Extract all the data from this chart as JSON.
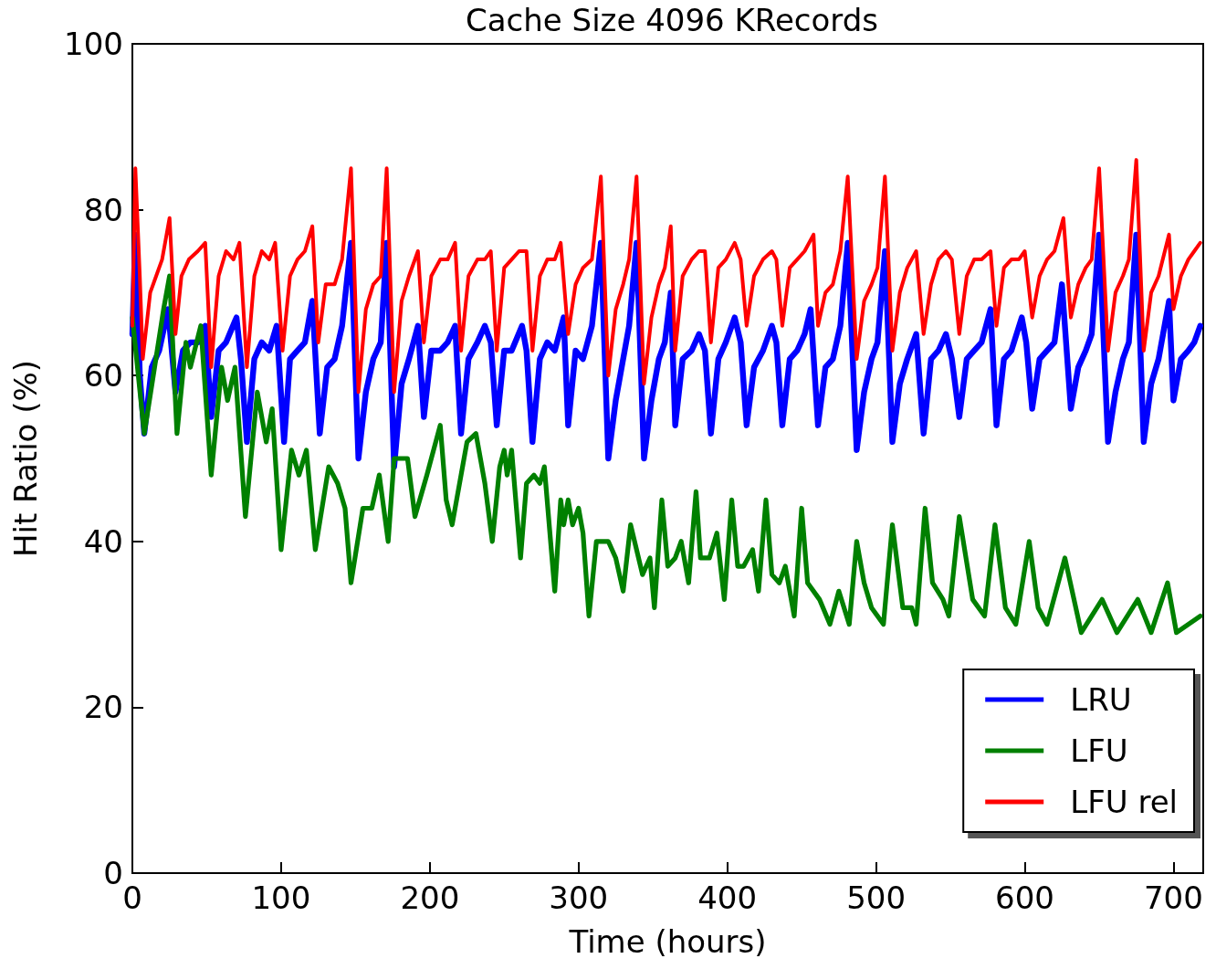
{
  "chart_data": {
    "type": "line",
    "title": "Cache Size 4096 KRecords",
    "xlabel": "Time (hours)",
    "ylabel": "Hit Ratio (%)",
    "xlim": [
      0,
      720
    ],
    "xticks": [
      0,
      100,
      200,
      300,
      400,
      500,
      600,
      700
    ],
    "ylim": [
      0,
      100
    ],
    "yticks": [
      0,
      20,
      40,
      60,
      80,
      100
    ],
    "grid": false,
    "legend": "bottom right",
    "marker": "none",
    "line_style": "solid",
    "series": [
      {
        "name": "LRU",
        "color": "#0000ff",
        "x": [
          0,
          2,
          5,
          8,
          13,
          18,
          24,
          29,
          34,
          39,
          44,
          49,
          53,
          58,
          63,
          70,
          73,
          77,
          82,
          87,
          92,
          97,
          102,
          106,
          111,
          116,
          121,
          126,
          131,
          136,
          141,
          147,
          152,
          157,
          162,
          167,
          171,
          176,
          181,
          186,
          192,
          196,
          201,
          207,
          212,
          217,
          221,
          226,
          232,
          237,
          241,
          245,
          250,
          255,
          262,
          265,
          269,
          274,
          279,
          284,
          290,
          293,
          298,
          303,
          309,
          315,
          320,
          325,
          330,
          334,
          339,
          344,
          349,
          354,
          358,
          362,
          365,
          370,
          376,
          381,
          385,
          389,
          394,
          399,
          405,
          409,
          413,
          418,
          424,
          430,
          433,
          437,
          442,
          447,
          452,
          456,
          461,
          466,
          471,
          476,
          481,
          487,
          492,
          497,
          501,
          506,
          511,
          516,
          521,
          527,
          532,
          537,
          542,
          547,
          551,
          556,
          561,
          566,
          571,
          577,
          581,
          586,
          591,
          598,
          601,
          605,
          610,
          615,
          620,
          625,
          631,
          636,
          641,
          645,
          650,
          656,
          661,
          666,
          670,
          675,
          680,
          685,
          690,
          697,
          700,
          705,
          710,
          714,
          718
        ],
        "values": [
          65,
          77,
          60,
          53,
          61,
          63,
          68,
          58,
          63,
          64,
          64,
          66,
          55,
          63,
          64,
          67,
          62,
          52,
          62,
          64,
          63,
          66,
          52,
          62,
          63,
          64,
          69,
          53,
          61,
          62,
          66,
          76,
          50,
          58,
          62,
          64,
          76,
          49,
          59,
          62,
          66,
          55,
          63,
          63,
          64,
          66,
          53,
          62,
          64,
          66,
          64,
          54,
          63,
          63,
          66,
          63,
          52,
          62,
          64,
          63,
          67,
          54,
          63,
          62,
          66,
          76,
          50,
          57,
          62,
          66,
          76,
          50,
          57,
          62,
          64,
          70,
          54,
          62,
          63,
          65,
          63,
          53,
          62,
          64,
          67,
          64,
          54,
          61,
          63,
          66,
          64,
          54,
          62,
          63,
          65,
          68,
          54,
          61,
          62,
          66,
          76,
          51,
          58,
          62,
          64,
          75,
          52,
          59,
          62,
          65,
          53,
          62,
          63,
          65,
          62,
          55,
          62,
          63,
          64,
          68,
          54,
          62,
          63,
          67,
          64,
          56,
          62,
          63,
          64,
          71,
          56,
          61,
          63,
          65,
          77,
          52,
          58,
          62,
          64,
          77,
          52,
          59,
          62,
          69,
          57,
          62,
          63,
          64,
          66
        ]
      },
      {
        "name": "LFU",
        "color": "#008000",
        "x": [
          0,
          8,
          21,
          25,
          30,
          36,
          39,
          46,
          53,
          60,
          64,
          69,
          76,
          84,
          90,
          94,
          100,
          107,
          112,
          117,
          123,
          132,
          138,
          143,
          147,
          155,
          161,
          166,
          169,
          172,
          176,
          185,
          190,
          198,
          207,
          211,
          215,
          225,
          231,
          237,
          242,
          247,
          250,
          252,
          255,
          261,
          265,
          270,
          274,
          277,
          284,
          288,
          290,
          293,
          296,
          300,
          303,
          307,
          312,
          320,
          325,
          330,
          335,
          343,
          348,
          351,
          356,
          360,
          365,
          369,
          374,
          379,
          382,
          388,
          393,
          398,
          403,
          407,
          411,
          417,
          421,
          426,
          430,
          435,
          439,
          445,
          450,
          454,
          462,
          469,
          475,
          482,
          487,
          492,
          497,
          505,
          511,
          518,
          524,
          527,
          533,
          538,
          545,
          549,
          556,
          565,
          573,
          580,
          587,
          594,
          603,
          609,
          615,
          627,
          638,
          652,
          662,
          676,
          685,
          696,
          702,
          718
        ],
        "values": [
          67,
          53,
          68,
          72,
          53,
          64,
          61,
          66,
          48,
          61,
          57,
          61,
          43,
          58,
          52,
          56,
          39,
          51,
          48,
          51,
          39,
          49,
          47,
          44,
          35,
          44,
          44,
          48,
          44,
          40,
          50,
          50,
          43,
          48,
          54,
          45,
          42,
          52,
          53,
          47,
          40,
          49,
          51,
          48,
          51,
          38,
          47,
          48,
          47,
          49,
          34,
          45,
          42,
          45,
          42,
          44,
          41,
          31,
          40,
          40,
          38,
          34,
          42,
          36,
          38,
          32,
          45,
          37,
          38,
          40,
          35,
          46,
          38,
          38,
          41,
          33,
          45,
          37,
          37,
          39,
          34,
          45,
          36,
          35,
          37,
          31,
          44,
          35,
          33,
          30,
          34,
          30,
          40,
          35,
          32,
          30,
          42,
          32,
          32,
          30,
          44,
          35,
          33,
          31,
          43,
          33,
          31,
          42,
          32,
          30,
          40,
          32,
          30,
          38,
          29,
          33,
          29,
          33,
          29,
          35,
          29,
          31
        ]
      },
      {
        "name": "LFU rel",
        "color": "#ff0000",
        "x": [
          0,
          2,
          5,
          7,
          12,
          16,
          20,
          25,
          29,
          33,
          38,
          44,
          49,
          53,
          58,
          63,
          68,
          72,
          77,
          82,
          87,
          92,
          96,
          101,
          106,
          111,
          116,
          121,
          125,
          130,
          136,
          141,
          147,
          152,
          157,
          162,
          167,
          171,
          176,
          181,
          186,
          192,
          196,
          201,
          207,
          212,
          217,
          221,
          226,
          232,
          237,
          241,
          245,
          250,
          255,
          260,
          265,
          269,
          274,
          279,
          284,
          288,
          293,
          298,
          303,
          309,
          315,
          320,
          325,
          330,
          334,
          339,
          344,
          349,
          354,
          358,
          362,
          365,
          370,
          376,
          381,
          385,
          389,
          394,
          399,
          405,
          409,
          413,
          418,
          424,
          430,
          433,
          437,
          442,
          447,
          452,
          458,
          461,
          466,
          471,
          476,
          481,
          487,
          492,
          497,
          501,
          506,
          511,
          516,
          521,
          527,
          532,
          537,
          542,
          547,
          551,
          556,
          561,
          566,
          571,
          577,
          581,
          586,
          591,
          596,
          600,
          605,
          610,
          615,
          620,
          626,
          631,
          636,
          641,
          645,
          650,
          656,
          661,
          666,
          670,
          675,
          680,
          685,
          690,
          697,
          700,
          705,
          710,
          714,
          718
        ],
        "values": [
          66,
          85,
          72,
          62,
          70,
          72,
          74,
          79,
          65,
          72,
          74,
          75,
          76,
          61,
          72,
          75,
          74,
          76,
          61,
          72,
          75,
          74,
          76,
          63,
          72,
          74,
          75,
          78,
          64,
          71,
          71,
          74,
          85,
          58,
          68,
          71,
          72,
          85,
          58,
          69,
          72,
          75,
          64,
          72,
          74,
          74,
          76,
          63,
          72,
          74,
          74,
          75,
          63,
          73,
          74,
          75,
          75,
          63,
          72,
          74,
          74,
          76,
          65,
          71,
          73,
          74,
          84,
          60,
          68,
          71,
          74,
          84,
          59,
          67,
          71,
          73,
          78,
          63,
          72,
          74,
          75,
          75,
          64,
          73,
          74,
          76,
          74,
          66,
          72,
          74,
          75,
          74,
          66,
          73,
          74,
          75,
          77,
          66,
          70,
          71,
          75,
          84,
          62,
          69,
          71,
          73,
          84,
          63,
          70,
          73,
          75,
          65,
          71,
          74,
          75,
          74,
          65,
          72,
          74,
          74,
          75,
          66,
          73,
          74,
          74,
          75,
          67,
          72,
          74,
          75,
          79,
          67,
          71,
          73,
          74,
          85,
          63,
          70,
          72,
          74,
          86,
          63,
          70,
          72,
          77,
          68,
          72,
          74,
          75,
          76
        ]
      }
    ]
  }
}
